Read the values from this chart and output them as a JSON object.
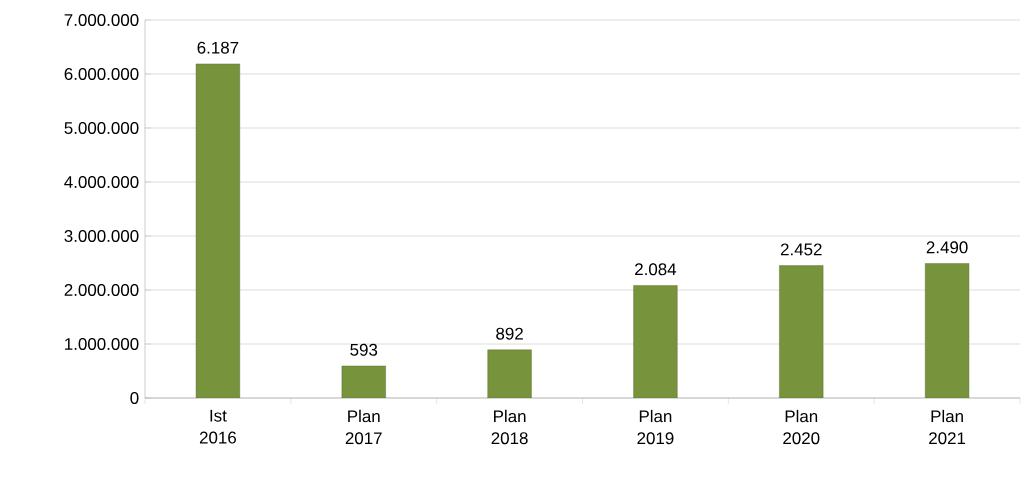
{
  "chart_data": {
    "type": "bar",
    "categories": [
      "Ist 2016",
      "Plan 2017",
      "Plan 2018",
      "Plan 2019",
      "Plan 2020",
      "Plan 2021"
    ],
    "values": [
      6187000,
      593000,
      892000,
      2084000,
      2452000,
      2490000
    ],
    "annotations": [
      {
        "text": "6.187",
        "x": "Ist 2016",
        "y": 6187000
      },
      {
        "text": "593",
        "x": "Plan 2017",
        "y": 593000
      },
      {
        "text": "892",
        "x": "Plan 2018",
        "y": 892000
      },
      {
        "text": "2.084",
        "x": "Plan 2019",
        "y": 2084000
      },
      {
        "text": "2.452",
        "x": "Plan 2020",
        "y": 2452000
      },
      {
        "text": "2.490",
        "x": "Plan 2021",
        "y": 2490000
      }
    ],
    "color": "#77933c",
    "ylim": [
      0,
      7000000
    ],
    "yticks": [
      {
        "value": 0,
        "label": "0"
      },
      {
        "value": 1000000,
        "label": "1.000.000"
      },
      {
        "value": 2000000,
        "label": "2.000.000"
      },
      {
        "value": 3000000,
        "label": "3.000.000"
      },
      {
        "value": 4000000,
        "label": "4.000.000"
      },
      {
        "value": 5000000,
        "label": "5.000.000"
      },
      {
        "value": 6000000,
        "label": "6.000.000"
      },
      {
        "value": 7000000,
        "label": "7.000.000"
      }
    ],
    "grid": "y"
  }
}
